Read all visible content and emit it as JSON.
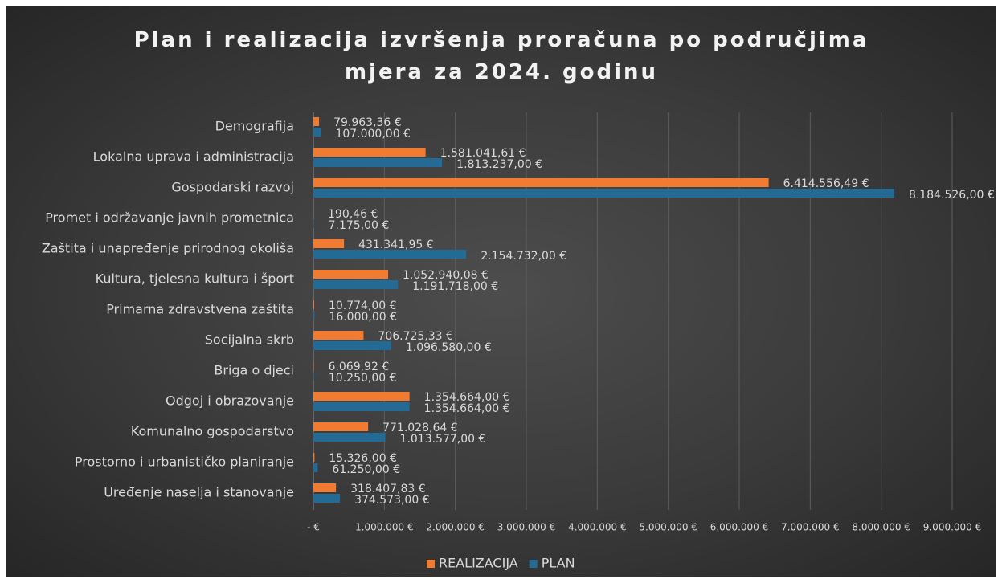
{
  "chart_data": {
    "type": "hbar",
    "title": "Plan i realizacija izvršenja proračuna po područjima mjera za 2024. godinu",
    "categories": [
      "Demografija",
      "Lokalna uprava i administracija",
      "Gospodarski razvoj",
      "Promet i održavanje javnih prometnica",
      "Zaštita i unapređenje prirodnog okoliša",
      "Kultura, tjelesna kultura i šport",
      "Primarna zdravstvena zaštita",
      "Socijalna skrb",
      "Briga o djeci",
      "Odgoj i obrazovanje",
      "Komunalno gospodarstvo",
      "Prostorno i urbanističko planiranje",
      "Uređenje naselja i stanovanje"
    ],
    "series": [
      {
        "name": "REALIZACIJA",
        "color": "#f07b31",
        "values": [
          79963.36,
          1581041.61,
          6414556.49,
          190.46,
          431341.95,
          1052940.08,
          10774.0,
          706725.33,
          6069.92,
          1354664.0,
          771028.64,
          15326.0,
          318407.83
        ],
        "value_labels": [
          "79.963,36 €",
          "1.581.041,61 €",
          "6.414.556,49 €",
          "190,46 €",
          "431.341,95 €",
          "1.052.940,08 €",
          "10.774,00 €",
          "706.725,33 €",
          "6.069,92 €",
          "1.354.664,00 €",
          "771.028,64 €",
          "15.326,00 €",
          "318.407,83 €"
        ]
      },
      {
        "name": "PLAN",
        "color": "#236a94",
        "values": [
          107000,
          1813237,
          8184526,
          7175,
          2154732,
          1191718,
          16000,
          1096580,
          10250,
          1354664,
          1013577,
          61250,
          374573
        ],
        "value_labels": [
          "107.000,00 €",
          "1.813.237,00 €",
          "8.184.526,00 €",
          "7.175,00 €",
          "2.154.732,00 €",
          "1.191.718,00 €",
          "16.000,00 €",
          "1.096.580,00 €",
          "10.250,00 €",
          "1.354.664,00 €",
          "1.013.577,00 €",
          "61.250,00 €",
          "374.573,00 €"
        ]
      }
    ],
    "xlim": [
      0,
      9000000
    ],
    "xticks": [
      {
        "value": 0,
        "label": "- €"
      },
      {
        "value": 1000000,
        "label": "1.000.000 €"
      },
      {
        "value": 2000000,
        "label": "2.000.000 €"
      },
      {
        "value": 3000000,
        "label": "3.000.000 €"
      },
      {
        "value": 4000000,
        "label": "4.000.000 €"
      },
      {
        "value": 5000000,
        "label": "5.000.000 €"
      },
      {
        "value": 6000000,
        "label": "6.000.000 €"
      },
      {
        "value": 7000000,
        "label": "7.000.000 €"
      },
      {
        "value": 8000000,
        "label": "8.000.000 €"
      },
      {
        "value": 9000000,
        "label": "9.000.000 €"
      }
    ],
    "grid": true,
    "legend": "bottom"
  }
}
